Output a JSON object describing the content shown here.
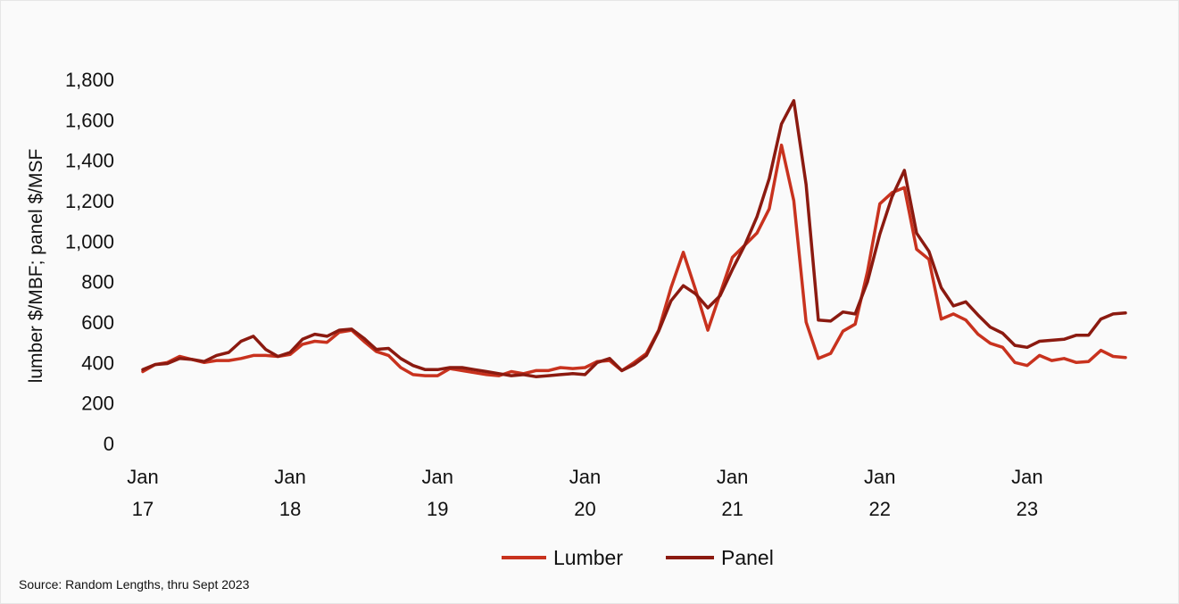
{
  "source_note": "Source: Random Lengths, thru Sept 2023",
  "chart_data": {
    "type": "line",
    "title": "",
    "xlabel": "",
    "ylabel": "lumber $/MBF; panel $/MSF",
    "ylim": [
      0,
      1800
    ],
    "yticks": [
      0,
      200,
      400,
      600,
      800,
      1000,
      1200,
      1400,
      1600,
      1800
    ],
    "ytick_labels": [
      "0",
      "200",
      "400",
      "600",
      "800",
      "1,000",
      "1,200",
      "1,400",
      "1,600",
      "1,800"
    ],
    "x_start": "2017-01",
    "x_end": "2023-09",
    "xtick_labels": [
      {
        "line1": "Jan",
        "line2": "17",
        "date": "2017-01"
      },
      {
        "line1": "Jan",
        "line2": "18",
        "date": "2018-01"
      },
      {
        "line1": "Jan",
        "line2": "19",
        "date": "2019-01"
      },
      {
        "line1": "Jan",
        "line2": "20",
        "date": "2020-01"
      },
      {
        "line1": "Jan",
        "line2": "21",
        "date": "2021-01"
      },
      {
        "line1": "Jan",
        "line2": "22",
        "date": "2022-01"
      },
      {
        "line1": "Jan",
        "line2": "23",
        "date": "2023-01"
      }
    ],
    "grid": false,
    "legend_position": "bottom-center",
    "series": [
      {
        "name": "Lumber",
        "color": "#c8321e",
        "values": [
          355,
          390,
          400,
          430,
          415,
          400,
          410,
          410,
          420,
          435,
          435,
          430,
          440,
          490,
          505,
          500,
          550,
          560,
          505,
          455,
          435,
          375,
          340,
          335,
          335,
          370,
          360,
          350,
          340,
          335,
          355,
          345,
          360,
          360,
          375,
          370,
          375,
          405,
          410,
          360,
          400,
          445,
          560,
          770,
          945,
          760,
          560,
          740,
          920,
          980,
          1040,
          1160,
          1475,
          1200,
          600,
          420,
          445,
          555,
          590,
          850,
          1185,
          1240,
          1265,
          960,
          910,
          615,
          640,
          610,
          540,
          495,
          475,
          400,
          385,
          435,
          410,
          420,
          400,
          405,
          460,
          430,
          425
        ],
        "dates_start": "2017-01"
      },
      {
        "name": "Panel",
        "color": "#8b1a10",
        "values": [
          365,
          390,
          395,
          420,
          415,
          405,
          435,
          450,
          505,
          530,
          465,
          430,
          450,
          515,
          540,
          530,
          560,
          565,
          520,
          465,
          470,
          420,
          385,
          365,
          365,
          375,
          375,
          365,
          355,
          345,
          335,
          340,
          330,
          335,
          340,
          345,
          340,
          400,
          420,
          360,
          390,
          435,
          555,
          705,
          780,
          740,
          670,
          730,
          860,
          980,
          1120,
          1310,
          1580,
          1695,
          1280,
          610,
          605,
          650,
          640,
          800,
          1035,
          1220,
          1350,
          1040,
          950,
          770,
          680,
          700,
          635,
          575,
          545,
          485,
          475,
          505,
          510,
          515,
          535,
          535,
          615,
          640,
          645
        ],
        "dates_start": "2017-01"
      }
    ]
  }
}
